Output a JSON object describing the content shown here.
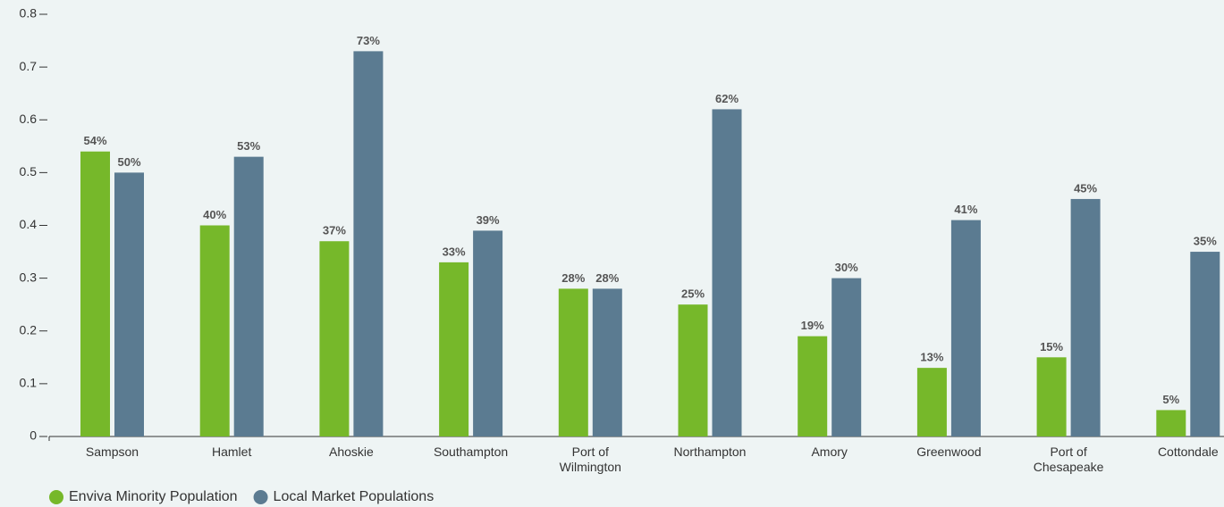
{
  "chart_data": {
    "type": "bar",
    "categories": [
      "Sampson",
      "Hamlet",
      "Ahoskie",
      "Southampton",
      "Port of Wilmington",
      "Northampton",
      "Amory",
      "Greenwood",
      "Port of Chesapeake",
      "Cottondale"
    ],
    "series": [
      {
        "name": "Enviva Minority Population",
        "color": "#76b82a",
        "values": [
          0.54,
          0.4,
          0.37,
          0.33,
          0.28,
          0.25,
          0.19,
          0.13,
          0.15,
          0.05
        ],
        "value_labels": [
          "54%",
          "40%",
          "37%",
          "33%",
          "28%",
          "25%",
          "19%",
          "13%",
          "15%",
          "5%"
        ]
      },
      {
        "name": "Local Market Populations",
        "color": "#5b7b91",
        "values": [
          0.5,
          0.53,
          0.73,
          0.39,
          0.28,
          0.62,
          0.3,
          0.41,
          0.45,
          0.35
        ],
        "value_labels": [
          "50%",
          "53%",
          "73%",
          "39%",
          "28%",
          "62%",
          "30%",
          "41%",
          "45%",
          "35%"
        ]
      }
    ],
    "ylim": [
      0,
      0.8
    ],
    "yticks": [
      0,
      0.1,
      0.2,
      0.3,
      0.4,
      0.5,
      0.6,
      0.7,
      0.8
    ],
    "legend": "bottom-left"
  }
}
